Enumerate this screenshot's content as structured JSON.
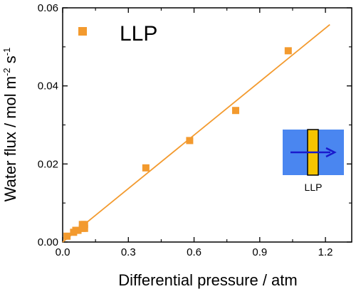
{
  "chart_data": {
    "type": "scatter",
    "title": "",
    "xlabel": "Differential pressure / atm",
    "ylabel": {
      "prefix": "Water flux / mol m",
      "sup1": "-2",
      "mid": " s",
      "sup2": "-1"
    },
    "xlim": [
      0,
      1.32
    ],
    "ylim": [
      0,
      0.06
    ],
    "xticks": [
      0.0,
      0.3,
      0.6,
      0.9,
      1.2
    ],
    "xtick_labels": [
      "0.0",
      "0.3",
      "0.6",
      "0.9",
      "1.2"
    ],
    "yticks": [
      0.0,
      0.02,
      0.04,
      0.06
    ],
    "ytick_labels": [
      "0.00",
      "0.02",
      "0.04",
      "0.06"
    ],
    "series": [
      {
        "name": "LLP",
        "color": "#f39a2e",
        "marker": "square",
        "points": [
          [
            0.02,
            0.0015
          ],
          [
            0.05,
            0.0025
          ],
          [
            0.06,
            0.003
          ],
          [
            0.07,
            0.003
          ],
          [
            0.09,
            0.0035
          ],
          [
            0.09,
            0.0045
          ],
          [
            0.1,
            0.0045
          ],
          [
            0.1,
            0.0035
          ],
          [
            0.38,
            0.019
          ],
          [
            0.58,
            0.026
          ],
          [
            0.79,
            0.0337
          ],
          [
            1.03,
            0.049
          ]
        ],
        "fit_line": [
          [
            0.0,
            0.0
          ],
          [
            1.22,
            0.0557
          ]
        ]
      }
    ],
    "legend": {
      "label": "LLP",
      "position": "top-left"
    },
    "inset": {
      "label": "LLP",
      "membrane_color": "#f5c400",
      "background_color": "#4a86f0",
      "arrow_color": "#1a1acc"
    }
  }
}
